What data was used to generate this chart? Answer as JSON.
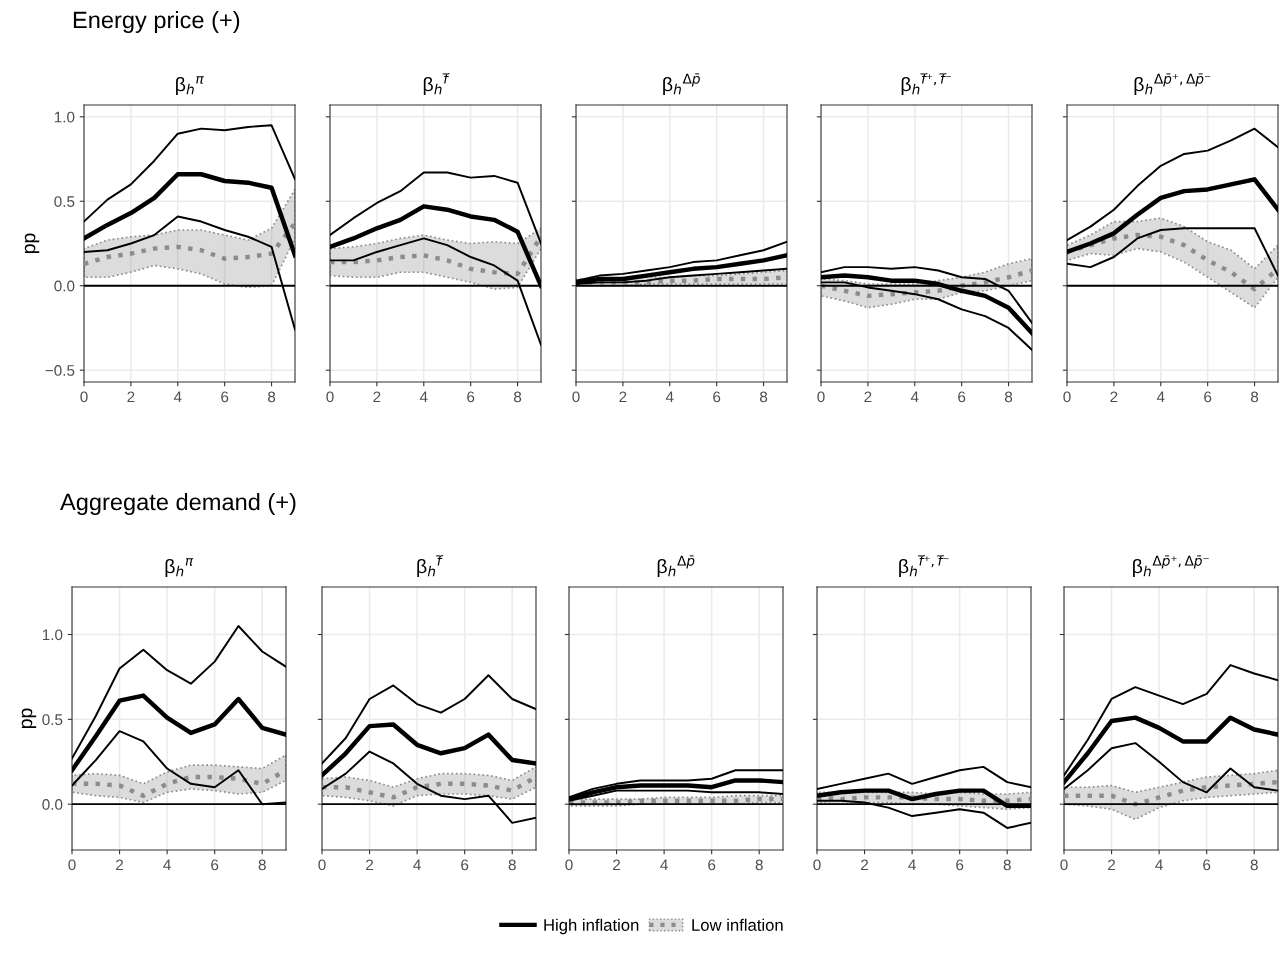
{
  "chart_data": [
    {
      "type": "line",
      "title": "β$_{h}$$^{π}$",
      "annotations": [
        "Energy price (+)"
      ],
      "ylabel": "pp",
      "legend": "bottom",
      "x": [
        0,
        1,
        2,
        3,
        4,
        5,
        6,
        7,
        8,
        9
      ],
      "xlim": [
        0,
        9
      ],
      "xticks": [
        0,
        2,
        4,
        6,
        8
      ],
      "ylim": [
        -0.57,
        1.07
      ],
      "yticks": [
        {
          "value": -0.5,
          "label": "−0.5"
        },
        {
          "value": 0,
          "label": "0.0"
        },
        {
          "value": 0.5,
          "label": "0.5"
        },
        {
          "value": 1,
          "label": "1.0"
        }
      ],
      "grid": true,
      "ref_lines": [
        {
          "axis": "y",
          "value": 0,
          "color": "#000000"
        }
      ],
      "series": [
        {
          "name": "High inflation",
          "color": "#000000",
          "line_style": "solid",
          "values": [
            0.28,
            0.36,
            0.43,
            0.52,
            0.66,
            0.66,
            0.62,
            0.61,
            0.58,
            0.18
          ]
        },
        {
          "color": "#000000",
          "line_style": "solid",
          "values": [
            0.2,
            0.21,
            0.25,
            0.3,
            0.41,
            0.38,
            0.33,
            0.29,
            0.23,
            -0.26
          ]
        },
        {
          "color": "#000000",
          "line_style": "solid",
          "values": [
            0.38,
            0.51,
            0.6,
            0.74,
            0.9,
            0.93,
            0.92,
            0.94,
            0.95,
            0.63
          ]
        },
        {
          "name": "Low inflation",
          "color": "#8c8c8c",
          "line_style": "dotted",
          "values": [
            0.13,
            0.17,
            0.19,
            0.22,
            0.23,
            0.21,
            0.16,
            0.17,
            0.19,
            0.37
          ],
          "lower": [
            0.05,
            0.05,
            0.08,
            0.12,
            0.1,
            0.07,
            0.01,
            -0.01,
            0.0,
            0.28
          ],
          "upper": [
            0.22,
            0.27,
            0.29,
            0.3,
            0.33,
            0.33,
            0.3,
            0.27,
            0.34,
            0.57
          ]
        }
      ]
    },
    {
      "type": "line",
      "title": "β$_{h}$$^{f̄}$",
      "tick_labels": "x",
      "x": [
        0,
        1,
        2,
        3,
        4,
        5,
        6,
        7,
        8,
        9
      ],
      "xlim": [
        0,
        9
      ],
      "xticks": [
        0,
        2,
        4,
        6,
        8
      ],
      "ylim": [
        -0.57,
        1.07
      ],
      "yticks": [
        {
          "value": -0.5,
          "label": null
        },
        {
          "value": 0,
          "label": null
        },
        {
          "value": 0.5,
          "label": null
        },
        {
          "value": 1,
          "label": null
        }
      ],
      "grid": true,
      "ref_lines": [
        {
          "axis": "y",
          "value": 0,
          "color": "#000000"
        }
      ],
      "series": [
        {
          "color": "#000000",
          "line_style": "solid",
          "values": [
            0.23,
            0.28,
            0.34,
            0.39,
            0.47,
            0.45,
            0.41,
            0.39,
            0.32,
            0.0
          ]
        },
        {
          "color": "#000000",
          "line_style": "solid",
          "values": [
            0.15,
            0.15,
            0.2,
            0.24,
            0.28,
            0.24,
            0.17,
            0.12,
            0.03,
            -0.35
          ]
        },
        {
          "color": "#000000",
          "line_style": "solid",
          "values": [
            0.3,
            0.4,
            0.49,
            0.56,
            0.67,
            0.67,
            0.64,
            0.65,
            0.61,
            0.25
          ]
        },
        {
          "color": "#8c8c8c",
          "line_style": "dotted",
          "values": [
            0.14,
            0.14,
            0.15,
            0.17,
            0.18,
            0.15,
            0.1,
            0.08,
            0.07,
            0.29
          ],
          "lower": [
            0.06,
            0.05,
            0.05,
            0.08,
            0.08,
            0.05,
            0.02,
            -0.02,
            -0.01,
            0.22
          ],
          "upper": [
            0.22,
            0.23,
            0.25,
            0.28,
            0.3,
            0.27,
            0.25,
            0.26,
            0.25,
            0.34
          ]
        }
      ]
    },
    {
      "type": "line",
      "title": "β$_{h}$$^{Δp̄}$",
      "tick_labels": "x",
      "x": [
        0,
        1,
        2,
        3,
        4,
        5,
        6,
        7,
        8,
        9
      ],
      "xlim": [
        0,
        9
      ],
      "xticks": [
        0,
        2,
        4,
        6,
        8
      ],
      "ylim": [
        -0.57,
        1.07
      ],
      "yticks": [
        {
          "value": -0.5,
          "label": null
        },
        {
          "value": 0,
          "label": null
        },
        {
          "value": 0.5,
          "label": null
        },
        {
          "value": 1,
          "label": null
        }
      ],
      "grid": true,
      "ref_lines": [
        {
          "axis": "y",
          "value": 0,
          "color": "#000000"
        }
      ],
      "series": [
        {
          "color": "#000000",
          "line_style": "solid",
          "values": [
            0.02,
            0.04,
            0.04,
            0.06,
            0.08,
            0.1,
            0.11,
            0.13,
            0.15,
            0.18
          ]
        },
        {
          "color": "#000000",
          "line_style": "solid",
          "values": [
            0.01,
            0.02,
            0.02,
            0.03,
            0.05,
            0.06,
            0.07,
            0.08,
            0.09,
            0.1
          ]
        },
        {
          "color": "#000000",
          "line_style": "solid",
          "values": [
            0.03,
            0.06,
            0.07,
            0.09,
            0.11,
            0.14,
            0.15,
            0.18,
            0.21,
            0.26
          ]
        },
        {
          "color": "#8c8c8c",
          "line_style": "dotted",
          "values": [
            0.02,
            0.02,
            0.02,
            0.02,
            0.03,
            0.03,
            0.04,
            0.04,
            0.04,
            0.05
          ],
          "lower": [
            0.0,
            0.0,
            0.0,
            0.01,
            0.01,
            0.01,
            0.01,
            0.01,
            0.01,
            0.01
          ],
          "upper": [
            0.04,
            0.04,
            0.04,
            0.05,
            0.05,
            0.06,
            0.06,
            0.07,
            0.08,
            0.09
          ]
        }
      ]
    },
    {
      "type": "line",
      "title": "β$_{h}$$^{f̄⁺,f̄⁻}$",
      "tick_labels": "x",
      "x": [
        0,
        1,
        2,
        3,
        4,
        5,
        6,
        7,
        8,
        9
      ],
      "xlim": [
        0,
        9
      ],
      "xticks": [
        0,
        2,
        4,
        6,
        8
      ],
      "ylim": [
        -0.57,
        1.07
      ],
      "yticks": [
        {
          "value": -0.5,
          "label": null
        },
        {
          "value": 0,
          "label": null
        },
        {
          "value": 0.5,
          "label": null
        },
        {
          "value": 1,
          "label": null
        }
      ],
      "grid": true,
      "ref_lines": [
        {
          "axis": "y",
          "value": 0,
          "color": "#000000"
        }
      ],
      "series": [
        {
          "color": "#000000",
          "line_style": "solid",
          "values": [
            0.05,
            0.06,
            0.05,
            0.03,
            0.03,
            0.01,
            -0.03,
            -0.06,
            -0.13,
            -0.28
          ]
        },
        {
          "color": "#000000",
          "line_style": "solid",
          "values": [
            0.02,
            0.02,
            -0.01,
            -0.03,
            -0.05,
            -0.08,
            -0.14,
            -0.18,
            -0.25,
            -0.38
          ]
        },
        {
          "color": "#000000",
          "line_style": "solid",
          "values": [
            0.08,
            0.11,
            0.11,
            0.1,
            0.11,
            0.09,
            0.05,
            0.04,
            -0.03,
            -0.22
          ]
        },
        {
          "color": "#8c8c8c",
          "line_style": "dotted",
          "values": [
            0.0,
            -0.03,
            -0.06,
            -0.05,
            -0.04,
            -0.03,
            0.0,
            0.02,
            0.05,
            0.09
          ],
          "lower": [
            -0.06,
            -0.09,
            -0.13,
            -0.11,
            -0.08,
            -0.08,
            -0.04,
            -0.03,
            0.0,
            0.03
          ],
          "upper": [
            0.04,
            0.03,
            0.01,
            0.01,
            0.01,
            0.03,
            0.05,
            0.08,
            0.13,
            0.16
          ]
        }
      ]
    },
    {
      "type": "line",
      "title": "β$_{h}$$^{Δp̄⁺,Δp̄⁻}$",
      "tick_labels": "x",
      "x": [
        0,
        1,
        2,
        3,
        4,
        5,
        6,
        7,
        8,
        9
      ],
      "xlim": [
        0,
        9
      ],
      "xticks": [
        0,
        2,
        4,
        6,
        8
      ],
      "ylim": [
        -0.57,
        1.07
      ],
      "yticks": [
        {
          "value": -0.5,
          "label": null
        },
        {
          "value": 0,
          "label": null
        },
        {
          "value": 0.5,
          "label": null
        },
        {
          "value": 1,
          "label": null
        }
      ],
      "grid": true,
      "ref_lines": [
        {
          "axis": "y",
          "value": 0,
          "color": "#000000"
        }
      ],
      "series": [
        {
          "color": "#000000",
          "line_style": "solid",
          "values": [
            0.2,
            0.25,
            0.31,
            0.42,
            0.52,
            0.56,
            0.57,
            0.6,
            0.63,
            0.45
          ]
        },
        {
          "color": "#000000",
          "line_style": "solid",
          "values": [
            0.13,
            0.11,
            0.17,
            0.28,
            0.33,
            0.34,
            0.34,
            0.34,
            0.34,
            0.06
          ]
        },
        {
          "color": "#000000",
          "line_style": "solid",
          "values": [
            0.27,
            0.35,
            0.45,
            0.59,
            0.71,
            0.78,
            0.8,
            0.86,
            0.93,
            0.82
          ]
        },
        {
          "color": "#8c8c8c",
          "line_style": "dotted",
          "values": [
            0.2,
            0.24,
            0.28,
            0.3,
            0.29,
            0.24,
            0.15,
            0.08,
            -0.02,
            0.1
          ],
          "lower": [
            0.15,
            0.19,
            0.18,
            0.22,
            0.2,
            0.14,
            0.05,
            -0.04,
            -0.13,
            0.05
          ],
          "upper": [
            0.24,
            0.3,
            0.38,
            0.38,
            0.4,
            0.35,
            0.26,
            0.21,
            0.1,
            0.24
          ]
        }
      ]
    },
    {
      "type": "line",
      "title": "β$_{h}$$^{π}$",
      "annotations": [
        "Aggregate demand (+)"
      ],
      "ylabel": "pp",
      "x": [
        0,
        1,
        2,
        3,
        4,
        5,
        6,
        7,
        8,
        9
      ],
      "xlim": [
        0,
        9
      ],
      "xticks": [
        0,
        2,
        4,
        6,
        8
      ],
      "ylim": [
        -0.27,
        1.28
      ],
      "yticks": [
        {
          "value": 0,
          "label": "0.0"
        },
        {
          "value": 0.5,
          "label": "0.5"
        },
        {
          "value": 1,
          "label": "1.0"
        }
      ],
      "grid": true,
      "ref_lines": [
        {
          "axis": "y",
          "value": 0,
          "color": "#000000"
        }
      ],
      "series": [
        {
          "color": "#000000",
          "line_style": "solid",
          "values": [
            0.2,
            0.4,
            0.61,
            0.64,
            0.51,
            0.42,
            0.47,
            0.62,
            0.45,
            0.41
          ]
        },
        {
          "color": "#000000",
          "line_style": "solid",
          "values": [
            0.11,
            0.26,
            0.43,
            0.37,
            0.21,
            0.12,
            0.1,
            0.2,
            0.0,
            0.01
          ]
        },
        {
          "color": "#000000",
          "line_style": "solid",
          "values": [
            0.27,
            0.52,
            0.8,
            0.91,
            0.79,
            0.71,
            0.84,
            1.05,
            0.9,
            0.81
          ]
        },
        {
          "color": "#8c8c8c",
          "line_style": "dotted",
          "values": [
            0.12,
            0.12,
            0.11,
            0.05,
            0.12,
            0.16,
            0.16,
            0.15,
            0.12,
            0.2
          ],
          "lower": [
            0.07,
            0.05,
            0.04,
            0.01,
            0.07,
            0.09,
            0.08,
            0.06,
            0.07,
            0.14
          ],
          "upper": [
            0.17,
            0.18,
            0.17,
            0.12,
            0.19,
            0.23,
            0.23,
            0.22,
            0.21,
            0.29
          ]
        }
      ]
    },
    {
      "type": "line",
      "title": "β$_{h}$$^{f̄}$",
      "tick_labels": "x",
      "x": [
        0,
        1,
        2,
        3,
        4,
        5,
        6,
        7,
        8,
        9
      ],
      "xlim": [
        0,
        9
      ],
      "xticks": [
        0,
        2,
        4,
        6,
        8
      ],
      "ylim": [
        -0.27,
        1.28
      ],
      "yticks": [
        {
          "value": 0,
          "label": null
        },
        {
          "value": 0.5,
          "label": null
        },
        {
          "value": 1,
          "label": null
        }
      ],
      "grid": true,
      "ref_lines": [
        {
          "axis": "y",
          "value": 0,
          "color": "#000000"
        }
      ],
      "series": [
        {
          "color": "#000000",
          "line_style": "solid",
          "values": [
            0.17,
            0.3,
            0.46,
            0.47,
            0.35,
            0.3,
            0.33,
            0.41,
            0.26,
            0.24
          ]
        },
        {
          "color": "#000000",
          "line_style": "solid",
          "values": [
            0.09,
            0.18,
            0.31,
            0.24,
            0.12,
            0.05,
            0.03,
            0.05,
            -0.11,
            -0.08
          ]
        },
        {
          "color": "#000000",
          "line_style": "solid",
          "values": [
            0.24,
            0.39,
            0.62,
            0.7,
            0.59,
            0.54,
            0.62,
            0.76,
            0.62,
            0.56
          ]
        },
        {
          "color": "#8c8c8c",
          "line_style": "dotted",
          "values": [
            0.1,
            0.1,
            0.07,
            0.04,
            0.1,
            0.12,
            0.12,
            0.11,
            0.08,
            0.16
          ],
          "lower": [
            0.05,
            0.04,
            0.02,
            -0.01,
            0.05,
            0.06,
            0.06,
            0.05,
            0.03,
            0.1
          ],
          "upper": [
            0.15,
            0.16,
            0.14,
            0.1,
            0.15,
            0.18,
            0.18,
            0.17,
            0.14,
            0.22
          ]
        }
      ]
    },
    {
      "type": "line",
      "title": "β$_{h}$$^{Δp̄}$",
      "tick_labels": "x",
      "x": [
        0,
        1,
        2,
        3,
        4,
        5,
        6,
        7,
        8,
        9
      ],
      "xlim": [
        0,
        9
      ],
      "xticks": [
        0,
        2,
        4,
        6,
        8
      ],
      "ylim": [
        -0.27,
        1.28
      ],
      "yticks": [
        {
          "value": 0,
          "label": null
        },
        {
          "value": 0.5,
          "label": null
        },
        {
          "value": 1,
          "label": null
        }
      ],
      "grid": true,
      "ref_lines": [
        {
          "axis": "y",
          "value": 0,
          "color": "#000000"
        }
      ],
      "series": [
        {
          "color": "#000000",
          "line_style": "solid",
          "values": [
            0.03,
            0.07,
            0.1,
            0.11,
            0.11,
            0.11,
            0.1,
            0.14,
            0.14,
            0.13
          ]
        },
        {
          "color": "#000000",
          "line_style": "solid",
          "values": [
            0.02,
            0.05,
            0.08,
            0.08,
            0.08,
            0.08,
            0.07,
            0.07,
            0.07,
            0.06
          ]
        },
        {
          "color": "#000000",
          "line_style": "solid",
          "values": [
            0.04,
            0.09,
            0.12,
            0.14,
            0.14,
            0.14,
            0.15,
            0.2,
            0.2,
            0.2
          ]
        },
        {
          "color": "#8c8c8c",
          "line_style": "dotted",
          "values": [
            0.01,
            0.01,
            0.01,
            0.02,
            0.02,
            0.02,
            0.02,
            0.02,
            0.03,
            0.03
          ],
          "lower": [
            -0.01,
            -0.01,
            -0.01,
            0.0,
            0.0,
            0.0,
            0.0,
            0.0,
            0.01,
            0.01
          ],
          "upper": [
            0.03,
            0.03,
            0.03,
            0.03,
            0.04,
            0.04,
            0.04,
            0.05,
            0.05,
            0.05
          ]
        }
      ]
    },
    {
      "type": "line",
      "title": "β$_{h}$$^{f̄⁺,f̄⁻}$",
      "tick_labels": "x",
      "x": [
        0,
        1,
        2,
        3,
        4,
        5,
        6,
        7,
        8,
        9
      ],
      "xlim": [
        0,
        9
      ],
      "xticks": [
        0,
        2,
        4,
        6,
        8
      ],
      "ylim": [
        -0.27,
        1.28
      ],
      "yticks": [
        {
          "value": 0,
          "label": null
        },
        {
          "value": 0.5,
          "label": null
        },
        {
          "value": 1,
          "label": null
        }
      ],
      "grid": true,
      "ref_lines": [
        {
          "axis": "y",
          "value": 0,
          "color": "#000000"
        }
      ],
      "series": [
        {
          "color": "#000000",
          "line_style": "solid",
          "values": [
            0.05,
            0.07,
            0.08,
            0.08,
            0.03,
            0.06,
            0.08,
            0.08,
            -0.01,
            -0.01
          ]
        },
        {
          "color": "#000000",
          "line_style": "solid",
          "values": [
            0.02,
            0.02,
            0.01,
            -0.02,
            -0.07,
            -0.05,
            -0.03,
            -0.05,
            -0.14,
            -0.11
          ]
        },
        {
          "color": "#000000",
          "line_style": "solid",
          "values": [
            0.09,
            0.12,
            0.15,
            0.18,
            0.12,
            0.16,
            0.2,
            0.22,
            0.13,
            0.1
          ]
        },
        {
          "color": "#8c8c8c",
          "line_style": "dotted",
          "values": [
            0.04,
            0.03,
            0.04,
            0.04,
            0.04,
            0.03,
            0.03,
            0.02,
            0.02,
            0.03
          ],
          "lower": [
            0.01,
            0.0,
            0.01,
            0.01,
            0.0,
            0.0,
            -0.01,
            -0.02,
            -0.03,
            -0.02
          ],
          "upper": [
            0.07,
            0.07,
            0.07,
            0.07,
            0.07,
            0.06,
            0.07,
            0.06,
            0.06,
            0.07
          ]
        }
      ]
    },
    {
      "type": "line",
      "title": "β$_{h}$$^{Δp̄⁺,Δp̄⁻}$",
      "tick_labels": "x",
      "x": [
        0,
        1,
        2,
        3,
        4,
        5,
        6,
        7,
        8,
        9
      ],
      "xlim": [
        0,
        9
      ],
      "xticks": [
        0,
        2,
        4,
        6,
        8
      ],
      "ylim": [
        -0.27,
        1.28
      ],
      "yticks": [
        {
          "value": 0,
          "label": null
        },
        {
          "value": 0.5,
          "label": null
        },
        {
          "value": 1,
          "label": null
        }
      ],
      "grid": true,
      "ref_lines": [
        {
          "axis": "y",
          "value": 0,
          "color": "#000000"
        }
      ],
      "series": [
        {
          "color": "#000000",
          "line_style": "solid",
          "values": [
            0.13,
            0.3,
            0.49,
            0.51,
            0.45,
            0.37,
            0.37,
            0.51,
            0.44,
            0.41
          ]
        },
        {
          "color": "#000000",
          "line_style": "solid",
          "values": [
            0.09,
            0.2,
            0.33,
            0.36,
            0.25,
            0.13,
            0.07,
            0.21,
            0.1,
            0.08
          ]
        },
        {
          "color": "#000000",
          "line_style": "solid",
          "values": [
            0.17,
            0.38,
            0.62,
            0.69,
            0.64,
            0.59,
            0.65,
            0.82,
            0.77,
            0.73
          ]
        },
        {
          "color": "#8c8c8c",
          "line_style": "dotted",
          "values": [
            0.05,
            0.05,
            0.05,
            0.0,
            0.04,
            0.08,
            0.1,
            0.11,
            0.12,
            0.13
          ],
          "lower": [
            0.0,
            -0.01,
            -0.03,
            -0.09,
            -0.02,
            0.02,
            0.04,
            0.05,
            0.06,
            0.07
          ],
          "upper": [
            0.1,
            0.1,
            0.11,
            0.07,
            0.1,
            0.13,
            0.16,
            0.17,
            0.18,
            0.2
          ]
        }
      ]
    }
  ]
}
